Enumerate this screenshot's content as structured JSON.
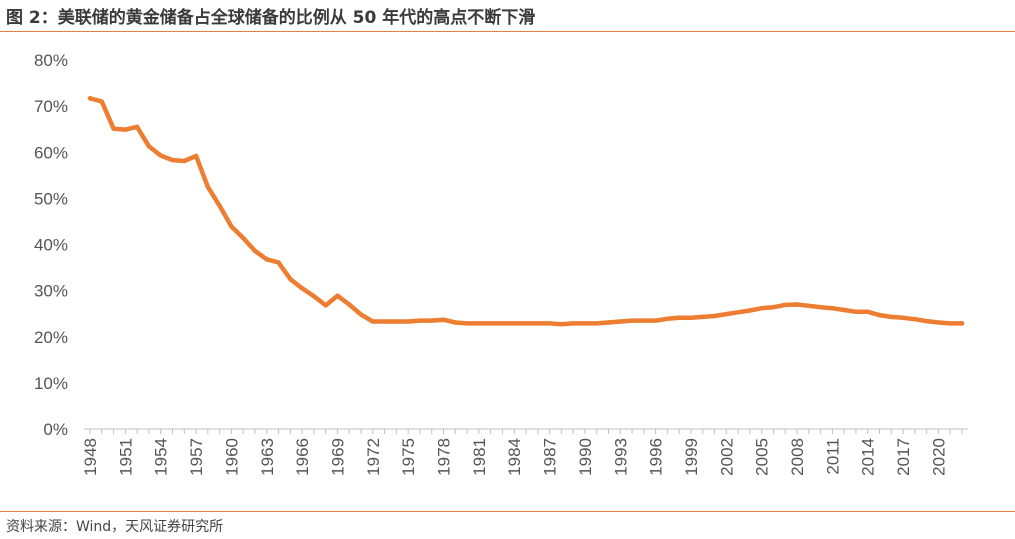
{
  "figure": {
    "title": "图 2：美联储的黄金储备占全球储备的比例从 50 年代的高点不断下滑",
    "source": "资料来源：Wind，天风证券研究所"
  },
  "colors": {
    "line": "#ED7D31",
    "rule": "#E5823C",
    "axis": "#BFBFBF",
    "text": "#595959"
  },
  "chart_data": {
    "type": "line",
    "title": "",
    "xlabel": "",
    "ylabel": "",
    "ylim": [
      0,
      0.8
    ],
    "yticks": [
      "0%",
      "10%",
      "20%",
      "30%",
      "40%",
      "50%",
      "60%",
      "70%",
      "80%"
    ],
    "xticks": [
      "1948",
      "1951",
      "1954",
      "1957",
      "1960",
      "1963",
      "1966",
      "1969",
      "1972",
      "1975",
      "1978",
      "1981",
      "1984",
      "1987",
      "1990",
      "1993",
      "1996",
      "1999",
      "2002",
      "2005",
      "2008",
      "2011",
      "2014",
      "2017",
      "2020"
    ],
    "grid": false,
    "legend": "none",
    "series": [
      {
        "x": [
          1948,
          1949,
          1950,
          1951,
          1952,
          1953,
          1954,
          1955,
          1956,
          1957,
          1958,
          1959,
          1960,
          1961,
          1962,
          1963,
          1964,
          1965,
          1966,
          1967,
          1968,
          1969,
          1970,
          1971,
          1972,
          1973,
          1974,
          1975,
          1976,
          1977,
          1978,
          1979,
          1980,
          1981,
          1982,
          1983,
          1984,
          1985,
          1986,
          1987,
          1988,
          1989,
          1990,
          1991,
          1992,
          1993,
          1994,
          1995,
          1996,
          1997,
          1998,
          1999,
          2000,
          2001,
          2002,
          2003,
          2004,
          2005,
          2006,
          2007,
          2008,
          2009,
          2010,
          2011,
          2012,
          2013,
          2014,
          2015,
          2016,
          2017,
          2018,
          2019,
          2020,
          2021,
          2022
        ],
        "values": [
          0.717,
          0.71,
          0.651,
          0.649,
          0.655,
          0.613,
          0.593,
          0.583,
          0.581,
          0.592,
          0.525,
          0.484,
          0.439,
          0.414,
          0.386,
          0.368,
          0.361,
          0.325,
          0.305,
          0.288,
          0.268,
          0.289,
          0.27,
          0.248,
          0.233,
          0.233,
          0.233,
          0.233,
          0.235,
          0.235,
          0.237,
          0.231,
          0.229,
          0.229,
          0.229,
          0.229,
          0.229,
          0.229,
          0.229,
          0.229,
          0.227,
          0.229,
          0.229,
          0.229,
          0.231,
          0.233,
          0.235,
          0.235,
          0.235,
          0.239,
          0.241,
          0.241,
          0.243,
          0.245,
          0.249,
          0.253,
          0.257,
          0.262,
          0.264,
          0.269,
          0.27,
          0.267,
          0.264,
          0.262,
          0.258,
          0.254,
          0.254,
          0.247,
          0.243,
          0.241,
          0.238,
          0.234,
          0.231,
          0.229,
          0.229
        ]
      }
    ]
  }
}
